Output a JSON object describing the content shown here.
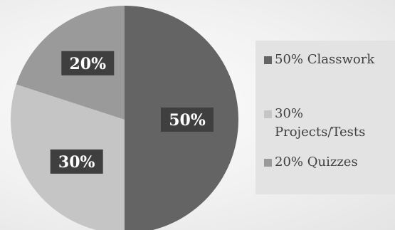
{
  "chart_data": {
    "type": "pie",
    "categories": [
      "Classwork",
      "Projects/Tests",
      "Quizzes"
    ],
    "values": [
      50,
      30,
      20
    ],
    "labels": [
      "50%",
      "30%",
      "20%"
    ],
    "colors": [
      "#646464",
      "#c5c5c5",
      "#9a9a9a"
    ],
    "legend": {
      "position": "right",
      "entries": [
        "50% Classwork",
        "30% Projects/Tests",
        "20% Quizzes"
      ]
    },
    "start_angle_deg": 0,
    "direction": "clockwise"
  }
}
